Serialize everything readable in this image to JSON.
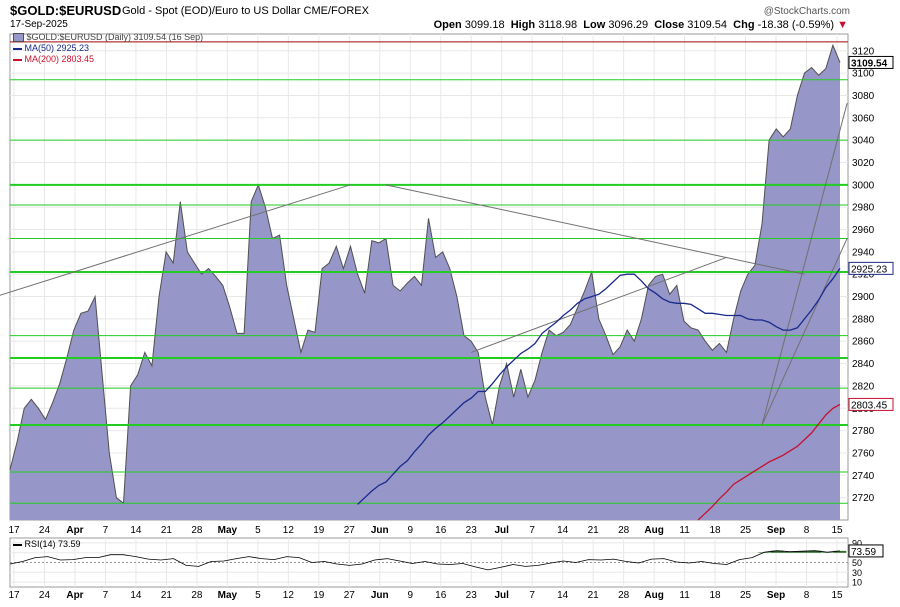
{
  "header": {
    "symbol": "$GOLD:$EURUSD",
    "description": "Gold - Spot (EOD)/Euro to US Dollar  CME/FOREX",
    "date": "17-Sep-2025",
    "credit": "@StockCharts.com",
    "open_label": "Open",
    "open": "3099.18",
    "high_label": "High",
    "high": "3118.98",
    "low_label": "Low",
    "low": "3096.29",
    "close_label": "Close",
    "close": "3109.54",
    "chg_label": "Chg",
    "chg": "-18.38 (-0.59%)",
    "chg_arrow": "▼"
  },
  "legend": {
    "main": "$GOLD:$EURUSD (Daily) 3109.54 (16 Sep)",
    "ma50": "MA(50) 2925.23",
    "ma200": "MA(200) 2803.45",
    "rsi": "RSI(14) 73.59"
  },
  "price_tags": {
    "close": "3109.54",
    "ma50": "2925.23",
    "ma200": "2803.45",
    "rsi": "73.59"
  },
  "colors": {
    "area_fill": "#9696c8",
    "area_line": "#505050",
    "ma50": "#1a2a8c",
    "ma200": "#c8102e",
    "hline": "#22cc22",
    "trend": "#707070",
    "grid": "#e8e8e8"
  },
  "chart_data": [
    {
      "type": "area",
      "title": "$GOLD:$EURUSD (Daily)",
      "ylim": [
        2700,
        3135
      ],
      "y_ticks": [
        2720,
        2740,
        2760,
        2780,
        2800,
        2820,
        2840,
        2860,
        2880,
        2900,
        2920,
        2940,
        2960,
        2980,
        3000,
        3020,
        3040,
        3060,
        3080,
        3100,
        3120
      ],
      "x_labels": [
        "17",
        "24",
        "Apr",
        "7",
        "14",
        "21",
        "28",
        "May",
        "5",
        "12",
        "19",
        "27",
        "Jun",
        "9",
        "16",
        "23",
        "Jul",
        "7",
        "14",
        "21",
        "28",
        "Aug",
        "11",
        "18",
        "25",
        "Sep",
        "8",
        "15"
      ],
      "x_label_bold": [
        "Apr",
        "May",
        "Jun",
        "Jul",
        "Aug",
        "Sep"
      ],
      "grid": true,
      "horizontal_levels": [
        2715,
        2743,
        2785,
        2818,
        2845,
        2865,
        2922,
        2952,
        2982,
        3000,
        3040,
        3094,
        3128
      ],
      "horizontal_levels_thick": [
        2785,
        2845,
        2922,
        3000
      ],
      "series": [
        {
          "name": "$GOLD:$EURUSD",
          "values": [
            2745,
            2770,
            2800,
            2808,
            2800,
            2790,
            2805,
            2822,
            2845,
            2870,
            2885,
            2887,
            2900,
            2830,
            2760,
            2720,
            2715,
            2820,
            2830,
            2850,
            2838,
            2900,
            2940,
            2930,
            2985,
            2940,
            2930,
            2920,
            2925,
            2918,
            2910,
            2890,
            2867,
            2867,
            2985,
            3000,
            2980,
            2952,
            2955,
            2910,
            2880,
            2850,
            2870,
            2868,
            2925,
            2930,
            2945,
            2925,
            2945,
            2920,
            2903,
            2950,
            2948,
            2952,
            2910,
            2905,
            2912,
            2918,
            2910,
            2970,
            2935,
            2940,
            2925,
            2900,
            2865,
            2860,
            2850,
            2810,
            2785,
            2820,
            2840,
            2810,
            2835,
            2810,
            2825,
            2850,
            2870,
            2865,
            2868,
            2875,
            2890,
            2905,
            2922,
            2880,
            2865,
            2848,
            2855,
            2870,
            2860,
            2880,
            2910,
            2918,
            2920,
            2902,
            2910,
            2878,
            2872,
            2870,
            2860,
            2852,
            2858,
            2850,
            2880,
            2905,
            2920,
            2928,
            2965,
            3040,
            3050,
            3043,
            3050,
            3080,
            3100,
            3105,
            3098,
            3104,
            3125,
            3109.54
          ]
        },
        {
          "name": "MA(50)",
          "values": [
            2714,
            2720,
            2726,
            2731,
            2734,
            2741,
            2748,
            2753,
            2761,
            2768,
            2776,
            2782,
            2787,
            2793,
            2799,
            2805,
            2809,
            2815,
            2815,
            2822,
            2830,
            2837,
            2843,
            2849,
            2853,
            2858,
            2867,
            2872,
            2877,
            2883,
            2888,
            2894,
            2898,
            2900,
            2902,
            2907,
            2913,
            2919,
            2920,
            2920,
            2914,
            2907,
            2903,
            2898,
            2895,
            2894,
            2894,
            2893,
            2889,
            2885,
            2885,
            2884,
            2883,
            2883,
            2883,
            2880,
            2879,
            2879,
            2877,
            2873,
            2870,
            2870,
            2872,
            2880,
            2888,
            2897,
            2908,
            2916,
            2925.23
          ]
        },
        {
          "name": "MA(200)",
          "values": [
            2700,
            2706,
            2712,
            2719,
            2725,
            2732,
            2736,
            2740,
            2744,
            2748,
            2752,
            2755,
            2758,
            2762,
            2766,
            2772,
            2778,
            2786,
            2794,
            2800,
            2803.45
          ]
        }
      ]
    },
    {
      "type": "line",
      "title": "RSI(14)",
      "ylim": [
        0,
        100
      ],
      "y_ticks": [
        10,
        30,
        50,
        70,
        90
      ],
      "series": [
        {
          "name": "RSI(14)",
          "values": [
            47,
            52,
            60,
            62,
            55,
            56,
            60,
            60,
            66,
            66,
            62,
            57,
            55,
            58,
            44,
            42,
            52,
            53,
            58,
            62,
            58,
            56,
            62,
            60,
            50,
            52,
            47,
            44,
            47,
            55,
            58,
            53,
            48,
            52,
            47,
            46,
            48,
            41,
            35,
            40,
            46,
            42,
            44,
            49,
            53,
            50,
            56,
            55,
            57,
            52,
            49,
            57,
            58,
            51,
            49,
            52,
            48,
            46,
            56,
            60,
            71,
            74,
            72,
            73,
            74,
            71,
            73.59
          ]
        }
      ]
    }
  ]
}
